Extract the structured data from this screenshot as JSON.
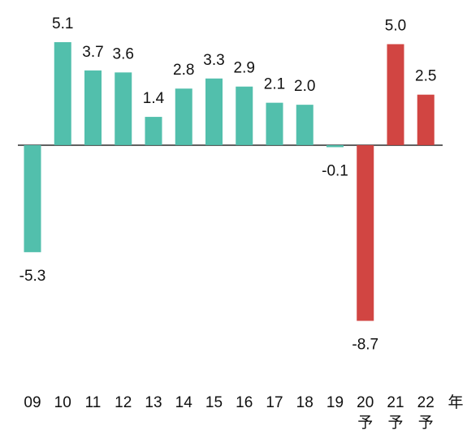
{
  "chart_data": {
    "type": "bar",
    "categories": [
      "09",
      "10",
      "11",
      "12",
      "13",
      "14",
      "15",
      "16",
      "17",
      "18",
      "19",
      "20",
      "21",
      "22"
    ],
    "category_notes": [
      null,
      null,
      null,
      null,
      null,
      null,
      null,
      null,
      null,
      null,
      null,
      "予",
      "予",
      "予"
    ],
    "x_unit": "年",
    "values": [
      -5.3,
      5.1,
      3.7,
      3.6,
      1.4,
      2.8,
      3.3,
      2.9,
      2.1,
      2.0,
      -0.1,
      -8.7,
      5.0,
      2.5
    ],
    "value_labels": [
      "-5.3",
      "5.1",
      "3.7",
      "3.6",
      "1.4",
      "2.8",
      "3.3",
      "2.9",
      "2.1",
      "2.0",
      "-0.1",
      "-8.7",
      "5.0",
      "2.5"
    ],
    "colors": [
      "#52bfac",
      "#52bfac",
      "#52bfac",
      "#52bfac",
      "#52bfac",
      "#52bfac",
      "#52bfac",
      "#52bfac",
      "#52bfac",
      "#52bfac",
      "#52bfac",
      "#d14542",
      "#d14542",
      "#d14542"
    ],
    "ylim": [
      -9,
      5.5
    ]
  }
}
